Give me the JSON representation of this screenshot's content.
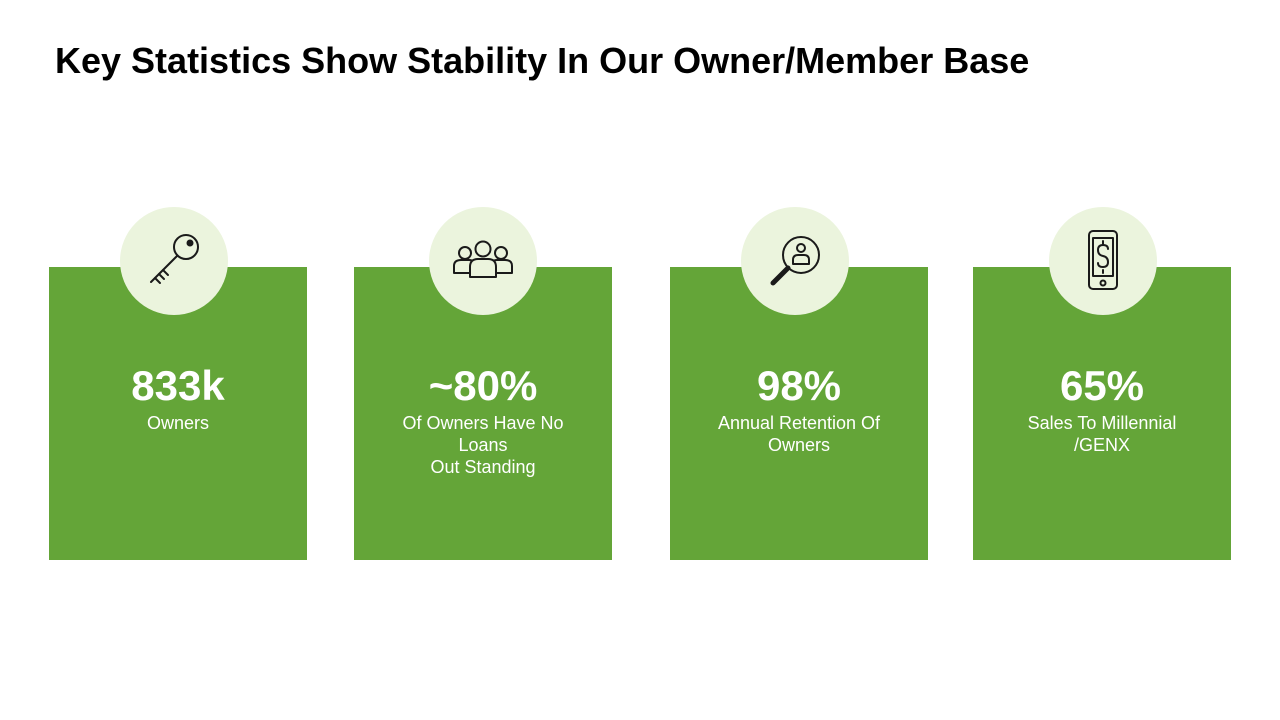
{
  "title": "Key Statistics Show Stability In Our Owner/Member Base",
  "colors": {
    "card_green": "#64a538",
    "icon_circle": "#ebf4dd",
    "title_text": "#000000",
    "card_text": "#ffffff"
  },
  "stats": [
    {
      "icon": "key-icon",
      "value": "833k",
      "label": "Owners"
    },
    {
      "icon": "group-icon",
      "value": "~80%",
      "label": "Of Owners Have No Loans\nOut Standing"
    },
    {
      "icon": "search-person-icon",
      "value": "98%",
      "label": "Annual Retention Of Owners"
    },
    {
      "icon": "mobile-dollar-icon",
      "value": "65%",
      "label": "Sales To Millennial /GENX"
    }
  ]
}
